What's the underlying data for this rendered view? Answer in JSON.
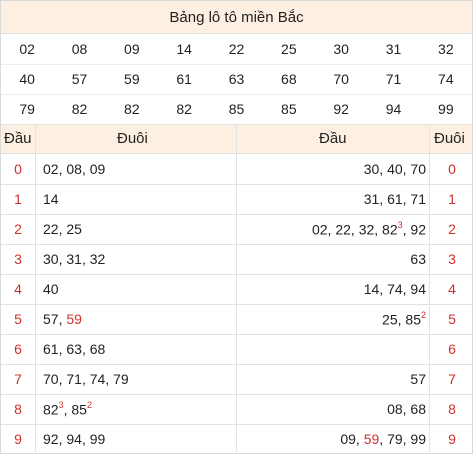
{
  "title": "Bảng lô tô miền Bắc",
  "numbers": [
    [
      "02",
      "08",
      "09",
      "14",
      "22",
      "25",
      "30",
      "31",
      "32"
    ],
    [
      "40",
      "57",
      "59",
      "61",
      "63",
      "68",
      "70",
      "71",
      "74"
    ],
    [
      "79",
      "82",
      "82",
      "82",
      "85",
      "85",
      "92",
      "94",
      "99"
    ]
  ],
  "highlight_numbers": [
    "59"
  ],
  "headers": {
    "left_dau": "Đầu",
    "left_duoi": "Đuôi",
    "right_dau": "Đầu",
    "right_duoi": "Đuôi"
  },
  "left_table": [
    {
      "dau": "0",
      "duoi": [
        {
          "v": "02"
        },
        {
          "v": "08"
        },
        {
          "v": "09"
        }
      ]
    },
    {
      "dau": "1",
      "duoi": [
        {
          "v": "14"
        }
      ]
    },
    {
      "dau": "2",
      "duoi": [
        {
          "v": "22"
        },
        {
          "v": "25"
        }
      ]
    },
    {
      "dau": "3",
      "duoi": [
        {
          "v": "30"
        },
        {
          "v": "31"
        },
        {
          "v": "32"
        }
      ]
    },
    {
      "dau": "4",
      "duoi": [
        {
          "v": "40"
        }
      ]
    },
    {
      "dau": "5",
      "duoi": [
        {
          "v": "57"
        },
        {
          "v": "59",
          "red": true
        }
      ]
    },
    {
      "dau": "6",
      "duoi": [
        {
          "v": "61"
        },
        {
          "v": "63"
        },
        {
          "v": "68"
        }
      ]
    },
    {
      "dau": "7",
      "duoi": [
        {
          "v": "70"
        },
        {
          "v": "71"
        },
        {
          "v": "74"
        },
        {
          "v": "79"
        }
      ]
    },
    {
      "dau": "8",
      "duoi": [
        {
          "v": "82",
          "sup": "3"
        },
        {
          "v": "85",
          "sup": "2"
        }
      ]
    },
    {
      "dau": "9",
      "duoi": [
        {
          "v": "92"
        },
        {
          "v": "94"
        },
        {
          "v": "99"
        }
      ]
    }
  ],
  "right_table": [
    {
      "duoi": "0",
      "dau": [
        {
          "v": "30"
        },
        {
          "v": "40"
        },
        {
          "v": "70"
        }
      ]
    },
    {
      "duoi": "1",
      "dau": [
        {
          "v": "31"
        },
        {
          "v": "61"
        },
        {
          "v": "71"
        }
      ]
    },
    {
      "duoi": "2",
      "dau": [
        {
          "v": "02"
        },
        {
          "v": "22"
        },
        {
          "v": "32"
        },
        {
          "v": "82",
          "sup": "3"
        },
        {
          "v": "92"
        }
      ]
    },
    {
      "duoi": "3",
      "dau": [
        {
          "v": "63"
        }
      ]
    },
    {
      "duoi": "4",
      "dau": [
        {
          "v": "14"
        },
        {
          "v": "74"
        },
        {
          "v": "94"
        }
      ]
    },
    {
      "duoi": "5",
      "dau": [
        {
          "v": "25"
        },
        {
          "v": "85",
          "sup": "2"
        }
      ]
    },
    {
      "duoi": "6",
      "dau": []
    },
    {
      "duoi": "7",
      "dau": [
        {
          "v": "57"
        }
      ]
    },
    {
      "duoi": "8",
      "dau": [
        {
          "v": "08"
        },
        {
          "v": "68"
        }
      ]
    },
    {
      "duoi": "9",
      "dau": [
        {
          "v": "09"
        },
        {
          "v": "59",
          "red": true
        },
        {
          "v": "79"
        },
        {
          "v": "99"
        }
      ]
    }
  ]
}
